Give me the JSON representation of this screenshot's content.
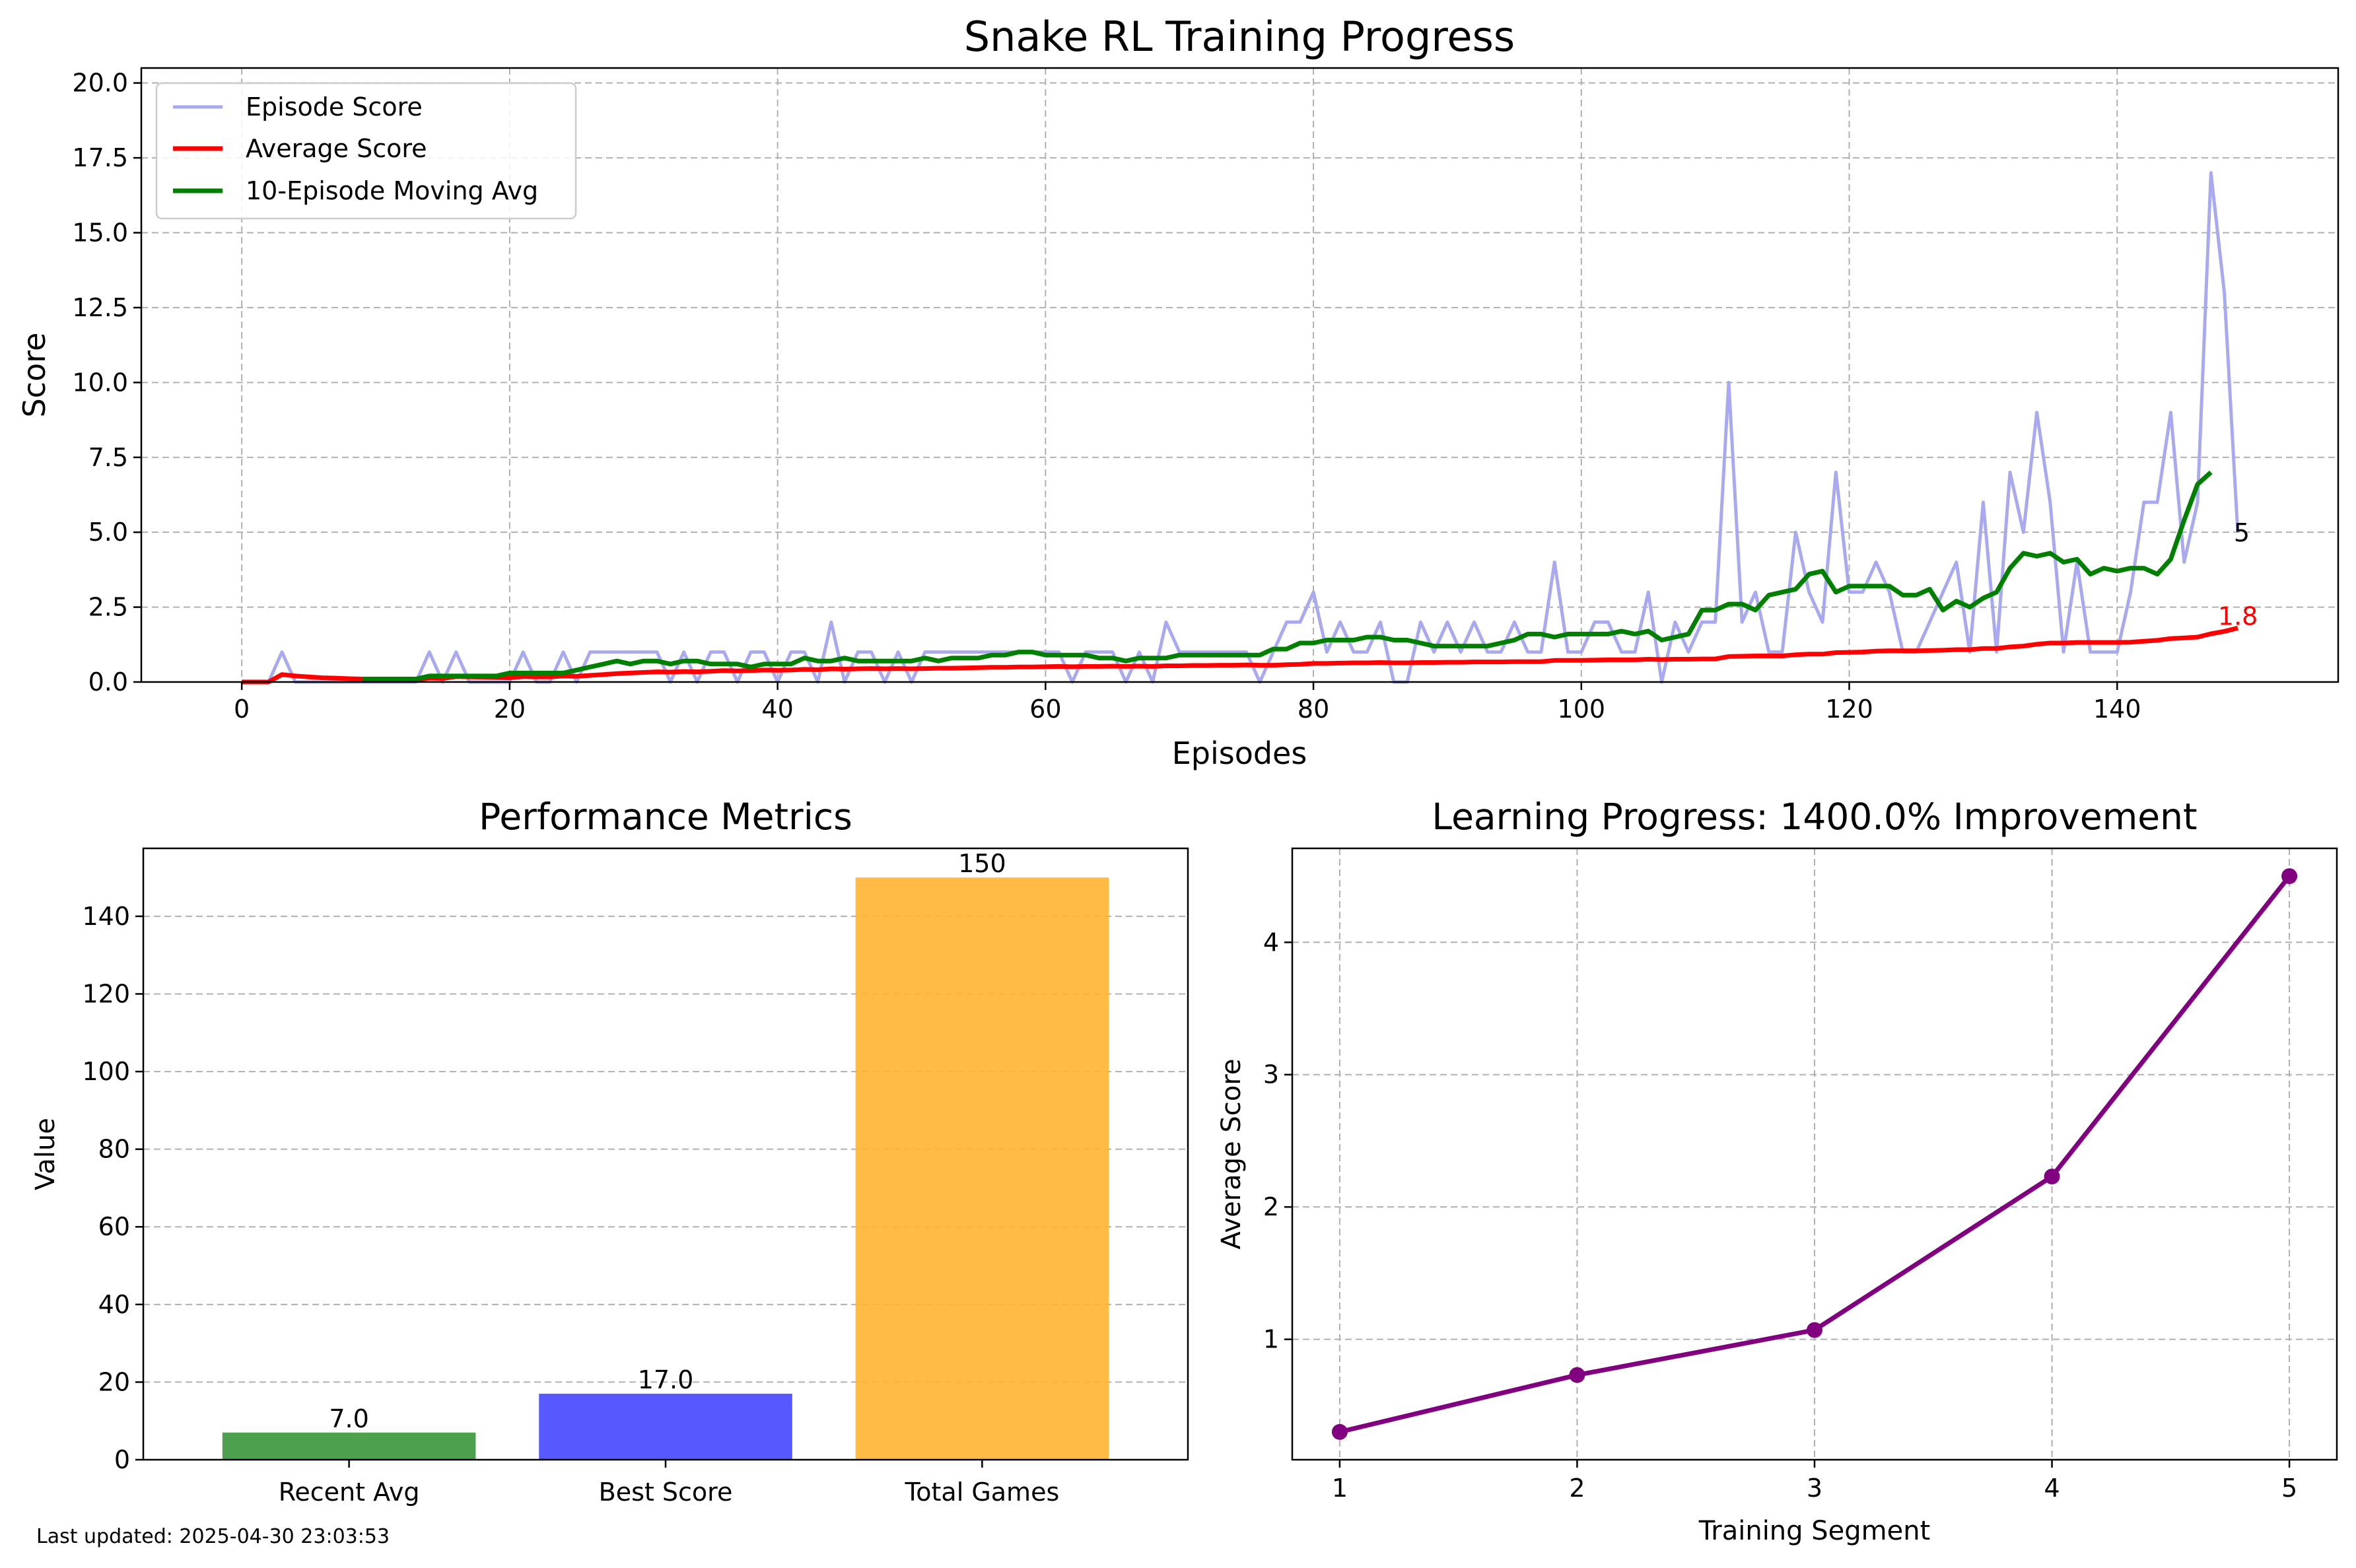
{
  "footer": {
    "last_updated": "Last updated: 2025-04-30 23:03:53"
  },
  "colors": {
    "episode": "#a9a9f0",
    "average": "#ff0000",
    "moving": "#007f00",
    "bar_recent": "#3a963a",
    "bar_best": "#4646ff",
    "bar_total": "#ffb432",
    "progress": "#800080",
    "grid": "#b0b0b0"
  },
  "chart_data": [
    {
      "type": "line",
      "title": "Snake RL Training Progress",
      "xlabel": "Episodes",
      "ylabel": "Score",
      "xlim": [
        -7.5,
        156.5
      ],
      "ylim": [
        0,
        20.5
      ],
      "xticks": [
        0,
        20,
        40,
        60,
        80,
        100,
        120,
        140
      ],
      "yticks": [
        0.0,
        2.5,
        5.0,
        7.5,
        10.0,
        12.5,
        15.0,
        17.5,
        20.0
      ],
      "ytick_labels": [
        "0.0",
        "2.5",
        "5.0",
        "7.5",
        "10.0",
        "12.5",
        "15.0",
        "17.5",
        "20.0"
      ],
      "grid": true,
      "legend": "upper-left",
      "series": [
        {
          "name": "Episode Score",
          "color": "#a9a9f0",
          "values": [
            0,
            0,
            0,
            1,
            0,
            0,
            0,
            0,
            0,
            0,
            0,
            0,
            0,
            0,
            1,
            0,
            1,
            0,
            0,
            0,
            0,
            1,
            0,
            0,
            1,
            0,
            1,
            1,
            1,
            1,
            1,
            1,
            0,
            1,
            0,
            1,
            1,
            0,
            1,
            1,
            0,
            1,
            1,
            0,
            2,
            0,
            1,
            1,
            0,
            1,
            0,
            1,
            1,
            1,
            1,
            1,
            1,
            1,
            1,
            1,
            1,
            1,
            0,
            1,
            1,
            1,
            0,
            1,
            0,
            2,
            1,
            1,
            1,
            1,
            1,
            1,
            0,
            1,
            2,
            2,
            3,
            1,
            2,
            1,
            1,
            2,
            0,
            0,
            2,
            1,
            2,
            1,
            2,
            1,
            1,
            2,
            1,
            1,
            4,
            1,
            1,
            2,
            2,
            1,
            1,
            3,
            0,
            2,
            1,
            2,
            2,
            10,
            2,
            3,
            1,
            1,
            5,
            3,
            2,
            7,
            3,
            3,
            4,
            3,
            1,
            1,
            2,
            3,
            4,
            1,
            6,
            1,
            7,
            5,
            9,
            6,
            1,
            4,
            1,
            1,
            1,
            3,
            6,
            6,
            9,
            4,
            6,
            17,
            13,
            5
          ]
        },
        {
          "name": "Average Score",
          "color": "#ff0000",
          "values": [
            0,
            0,
            0,
            0.25,
            0.2,
            0.17,
            0.14,
            0.13,
            0.11,
            0.1,
            0.09,
            0.08,
            0.08,
            0.07,
            0.13,
            0.12,
            0.18,
            0.17,
            0.16,
            0.15,
            0.14,
            0.18,
            0.17,
            0.17,
            0.2,
            0.19,
            0.22,
            0.25,
            0.28,
            0.3,
            0.32,
            0.34,
            0.33,
            0.35,
            0.34,
            0.36,
            0.38,
            0.37,
            0.38,
            0.4,
            0.39,
            0.4,
            0.42,
            0.41,
            0.44,
            0.43,
            0.44,
            0.45,
            0.44,
            0.45,
            0.44,
            0.45,
            0.46,
            0.46,
            0.47,
            0.48,
            0.49,
            0.49,
            0.5,
            0.5,
            0.51,
            0.52,
            0.51,
            0.52,
            0.52,
            0.53,
            0.52,
            0.53,
            0.52,
            0.54,
            0.54,
            0.55,
            0.55,
            0.56,
            0.56,
            0.57,
            0.56,
            0.56,
            0.58,
            0.59,
            0.62,
            0.62,
            0.63,
            0.64,
            0.64,
            0.65,
            0.64,
            0.64,
            0.65,
            0.65,
            0.66,
            0.66,
            0.67,
            0.67,
            0.67,
            0.68,
            0.68,
            0.68,
            0.72,
            0.72,
            0.72,
            0.73,
            0.74,
            0.74,
            0.74,
            0.76,
            0.75,
            0.76,
            0.76,
            0.77,
            0.77,
            0.85,
            0.86,
            0.87,
            0.87,
            0.87,
            0.91,
            0.93,
            0.93,
            0.98,
            0.99,
            1.0,
            1.03,
            1.04,
            1.04,
            1.04,
            1.05,
            1.06,
            1.08,
            1.08,
            1.12,
            1.12,
            1.17,
            1.2,
            1.26,
            1.3,
            1.3,
            1.32,
            1.32,
            1.32,
            1.32,
            1.33,
            1.36,
            1.39,
            1.45,
            1.47,
            1.5,
            1.61,
            1.69,
            1.8
          ]
        },
        {
          "name": "10-Episode Moving Avg",
          "color": "#007f00",
          "start_episode": 9,
          "values": [
            0.1,
            0.1,
            0.1,
            0.1,
            0.1,
            0.2,
            0.2,
            0.2,
            0.2,
            0.2,
            0.2,
            0.3,
            0.3,
            0.3,
            0.3,
            0.3,
            0.4,
            0.5,
            0.6,
            0.7,
            0.6,
            0.7,
            0.7,
            0.6,
            0.7,
            0.7,
            0.6,
            0.6,
            0.6,
            0.5,
            0.6,
            0.6,
            0.6,
            0.8,
            0.7,
            0.7,
            0.8,
            0.7,
            0.7,
            0.7,
            0.7,
            0.7,
            0.8,
            0.7,
            0.8,
            0.8,
            0.8,
            0.9,
            0.9,
            1.0,
            1.0,
            0.9,
            0.9,
            0.9,
            0.9,
            0.8,
            0.8,
            0.7,
            0.8,
            0.8,
            0.8,
            0.9,
            0.9,
            0.9,
            0.9,
            0.9,
            0.9,
            0.9,
            1.1,
            1.1,
            1.3,
            1.3,
            1.4,
            1.4,
            1.4,
            1.5,
            1.5,
            1.4,
            1.4,
            1.3,
            1.2,
            1.2,
            1.2,
            1.2,
            1.2,
            1.3,
            1.4,
            1.6,
            1.6,
            1.5,
            1.6,
            1.6,
            1.6,
            1.6,
            1.7,
            1.6,
            1.7,
            1.4,
            1.5,
            1.6,
            2.4,
            2.4,
            2.6,
            2.6,
            2.4,
            2.9,
            3.0,
            3.1,
            3.6,
            3.7,
            3.0,
            3.2,
            3.2,
            3.2,
            3.2,
            2.9,
            2.9,
            3.1,
            2.4,
            2.7,
            2.5,
            2.8,
            3.0,
            3.8,
            4.3,
            4.2,
            4.3,
            4.0,
            4.1,
            3.6,
            3.8,
            3.7,
            3.8,
            3.8,
            3.6,
            4.1,
            5.4,
            6.6,
            7.0
          ]
        }
      ],
      "annotations": [
        {
          "text": "5",
          "x": 149,
          "y": 5,
          "color": "#000000"
        },
        {
          "text": "1.8",
          "x": 149,
          "y": 1.8,
          "color": "#ff0000"
        }
      ]
    },
    {
      "type": "bar",
      "title": "Performance Metrics",
      "ylabel": "Value",
      "categories": [
        "Recent Avg",
        "Best Score",
        "Total Games"
      ],
      "values": [
        7.0,
        17.0,
        150
      ],
      "value_labels": [
        "7.0",
        "17.0",
        "150"
      ],
      "colors": [
        "#3a963a",
        "#4646ff",
        "#ffb432"
      ],
      "ylim": [
        0,
        157.5
      ],
      "yticks": [
        0,
        20,
        40,
        60,
        80,
        100,
        120,
        140
      ],
      "grid": true
    },
    {
      "type": "line",
      "title": "Learning Progress: 1400.0% Improvement",
      "xlabel": "Training Segment",
      "ylabel": "Average Score",
      "x": [
        1,
        2,
        3,
        4,
        5
      ],
      "values": [
        0.3,
        0.73,
        1.07,
        2.23,
        4.5
      ],
      "xlim": [
        0.8,
        5.2
      ],
      "ylim": [
        0.09,
        4.71
      ],
      "xticks": [
        1,
        2,
        3,
        4,
        5
      ],
      "yticks": [
        1,
        2,
        3,
        4
      ],
      "color": "#800080",
      "grid": true
    }
  ]
}
